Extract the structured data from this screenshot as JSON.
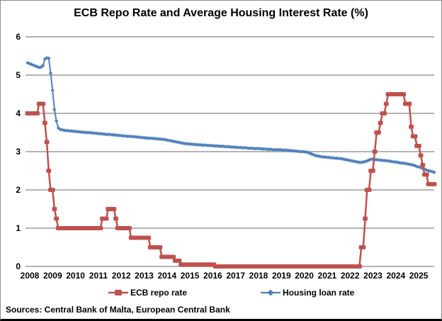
{
  "figure": {
    "title": "ECB Repo Rate and Average Housing Interest Rate (%)",
    "source_note": "Sources: Central Bank of Malta, European Central Bank"
  },
  "chart_data": {
    "type": "line",
    "title": "ECB Repo Rate and Average Housing Interest Rate (%)",
    "frequency": "monthly",
    "x_start": "2008-01",
    "x_end": "2025-09",
    "x_tick_labels": [
      "2008",
      "2009",
      "2010",
      "2011",
      "2012",
      "2013",
      "2014",
      "2015",
      "2016",
      "2017",
      "2018",
      "2019",
      "2020",
      "2021",
      "2022",
      "2023",
      "2024",
      "2025"
    ],
    "y_ticks": [
      0,
      1,
      2,
      3,
      4,
      5,
      6
    ],
    "ylim": [
      0,
      6
    ],
    "grid": "horizontal",
    "gridline_color": "#b3b3b3",
    "legend_position": "bottom",
    "series": [
      {
        "name": "ECB repo rate",
        "color": "#C0504D",
        "marker": "square",
        "values": [
          4.0,
          4.0,
          4.0,
          4.0,
          4.0,
          4.0,
          4.25,
          4.25,
          4.25,
          3.75,
          3.25,
          2.5,
          2.0,
          2.0,
          1.5,
          1.25,
          1.0,
          1.0,
          1.0,
          1.0,
          1.0,
          1.0,
          1.0,
          1.0,
          1.0,
          1.0,
          1.0,
          1.0,
          1.0,
          1.0,
          1.0,
          1.0,
          1.0,
          1.0,
          1.0,
          1.0,
          1.0,
          1.0,
          1.0,
          1.25,
          1.25,
          1.25,
          1.5,
          1.5,
          1.5,
          1.5,
          1.25,
          1.0,
          1.0,
          1.0,
          1.0,
          1.0,
          1.0,
          1.0,
          0.75,
          0.75,
          0.75,
          0.75,
          0.75,
          0.75,
          0.75,
          0.75,
          0.75,
          0.75,
          0.5,
          0.5,
          0.5,
          0.5,
          0.5,
          0.5,
          0.25,
          0.25,
          0.25,
          0.25,
          0.25,
          0.25,
          0.25,
          0.15,
          0.15,
          0.15,
          0.05,
          0.05,
          0.05,
          0.05,
          0.05,
          0.05,
          0.05,
          0.05,
          0.05,
          0.05,
          0.05,
          0.05,
          0.05,
          0.05,
          0.05,
          0.05,
          0.05,
          0.05,
          0.0,
          0.0,
          0.0,
          0.0,
          0.0,
          0.0,
          0.0,
          0.0,
          0.0,
          0.0,
          0.0,
          0.0,
          0.0,
          0.0,
          0.0,
          0.0,
          0.0,
          0.0,
          0.0,
          0.0,
          0.0,
          0.0,
          0.0,
          0.0,
          0.0,
          0.0,
          0.0,
          0.0,
          0.0,
          0.0,
          0.0,
          0.0,
          0.0,
          0.0,
          0.0,
          0.0,
          0.0,
          0.0,
          0.0,
          0.0,
          0.0,
          0.0,
          0.0,
          0.0,
          0.0,
          0.0,
          0.0,
          0.0,
          0.0,
          0.0,
          0.0,
          0.0,
          0.0,
          0.0,
          0.0,
          0.0,
          0.0,
          0.0,
          0.0,
          0.0,
          0.0,
          0.0,
          0.0,
          0.0,
          0.0,
          0.0,
          0.0,
          0.0,
          0.0,
          0.0,
          0.0,
          0.0,
          0.0,
          0.0,
          0.0,
          0.0,
          0.5,
          0.5,
          1.25,
          2.0,
          2.0,
          2.5,
          2.5,
          3.0,
          3.5,
          3.5,
          3.75,
          4.0,
          4.0,
          4.25,
          4.5,
          4.5,
          4.5,
          4.5,
          4.5,
          4.5,
          4.5,
          4.5,
          4.5,
          4.25,
          4.25,
          4.25,
          3.65,
          3.4,
          3.4,
          3.15,
          3.15,
          2.9,
          2.65,
          2.4,
          2.4,
          2.15,
          2.15,
          2.15,
          2.15
        ]
      },
      {
        "name": "Housing loan rate",
        "color": "#4F81BD",
        "marker": "diamond",
        "values": [
          5.32,
          5.3,
          5.28,
          5.26,
          5.24,
          5.22,
          5.2,
          5.21,
          5.25,
          5.42,
          5.45,
          5.44,
          5.05,
          4.6,
          4.1,
          3.8,
          3.62,
          3.58,
          3.57,
          3.56,
          3.55,
          3.55,
          3.54,
          3.54,
          3.53,
          3.53,
          3.52,
          3.52,
          3.51,
          3.51,
          3.5,
          3.5,
          3.5,
          3.49,
          3.49,
          3.48,
          3.48,
          3.47,
          3.47,
          3.46,
          3.46,
          3.45,
          3.45,
          3.45,
          3.44,
          3.44,
          3.43,
          3.43,
          3.42,
          3.42,
          3.41,
          3.41,
          3.4,
          3.4,
          3.4,
          3.39,
          3.39,
          3.38,
          3.38,
          3.37,
          3.37,
          3.36,
          3.36,
          3.35,
          3.35,
          3.35,
          3.34,
          3.34,
          3.33,
          3.33,
          3.32,
          3.32,
          3.31,
          3.3,
          3.29,
          3.28,
          3.27,
          3.26,
          3.25,
          3.24,
          3.23,
          3.22,
          3.21,
          3.21,
          3.2,
          3.2,
          3.19,
          3.19,
          3.18,
          3.18,
          3.18,
          3.17,
          3.17,
          3.17,
          3.16,
          3.16,
          3.16,
          3.15,
          3.15,
          3.15,
          3.14,
          3.14,
          3.14,
          3.13,
          3.13,
          3.13,
          3.12,
          3.12,
          3.12,
          3.11,
          3.11,
          3.11,
          3.1,
          3.1,
          3.1,
          3.09,
          3.09,
          3.09,
          3.08,
          3.08,
          3.08,
          3.08,
          3.07,
          3.07,
          3.07,
          3.06,
          3.06,
          3.06,
          3.05,
          3.05,
          3.05,
          3.05,
          3.05,
          3.04,
          3.04,
          3.04,
          3.03,
          3.03,
          3.02,
          3.02,
          3.01,
          3.01,
          3.0,
          3.0,
          3.0,
          2.99,
          2.98,
          2.96,
          2.94,
          2.92,
          2.9,
          2.89,
          2.88,
          2.87,
          2.86,
          2.86,
          2.85,
          2.85,
          2.84,
          2.84,
          2.83,
          2.83,
          2.82,
          2.82,
          2.81,
          2.8,
          2.79,
          2.78,
          2.77,
          2.76,
          2.75,
          2.74,
          2.73,
          2.72,
          2.72,
          2.73,
          2.74,
          2.76,
          2.78,
          2.8,
          2.8,
          2.79,
          2.79,
          2.78,
          2.78,
          2.77,
          2.77,
          2.76,
          2.76,
          2.75,
          2.74,
          2.73,
          2.73,
          2.72,
          2.71,
          2.7,
          2.7,
          2.69,
          2.68,
          2.67,
          2.66,
          2.65,
          2.63,
          2.61,
          2.6,
          2.58,
          2.56,
          2.54,
          2.52,
          2.5,
          2.49,
          2.48,
          2.46
        ]
      }
    ]
  }
}
